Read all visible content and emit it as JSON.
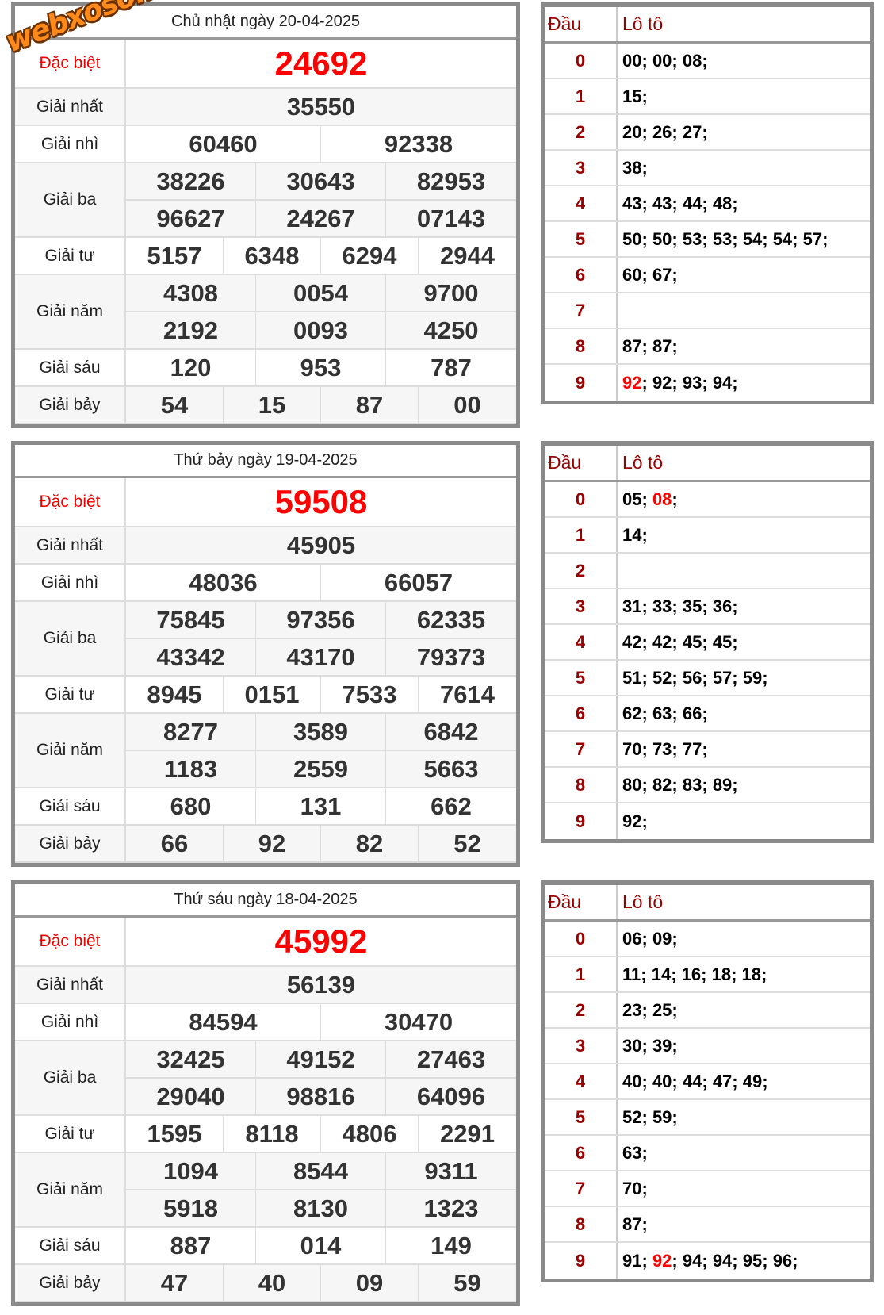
{
  "watermark": "webxoso.net",
  "labels": {
    "special": "Đặc biệt",
    "first": "Giải nhất",
    "second": "Giải nhì",
    "third": "Giải ba",
    "fourth": "Giải tư",
    "fifth": "Giải năm",
    "sixth": "Giải sáu",
    "seventh": "Giải bảy",
    "dau": "Đầu",
    "loto": "Lô tô"
  },
  "colors": {
    "special": "#ff0000",
    "head_digit": "#990000",
    "annotation": "#ff0000",
    "highlight": "#ff0000"
  },
  "draws": [
    {
      "title": "Chủ nhật ngày 20-04-2025",
      "special": "24692",
      "first": "35550",
      "second": [
        "60460",
        "92338"
      ],
      "third": [
        "38226",
        "30643",
        "82953",
        "96627",
        "24267",
        "07143"
      ],
      "fourth": [
        "5157",
        "6348",
        "6294",
        "2944"
      ],
      "fifth": [
        "4308",
        "0054",
        "9700",
        "2192",
        "0093",
        "4250"
      ],
      "sixth": [
        "120",
        "953",
        "787"
      ],
      "seventh": [
        "54",
        "15",
        "87",
        "00"
      ],
      "circled_fifth_index": 4,
      "loto": [
        {
          "head": "0",
          "nums": [
            {
              "n": "00"
            },
            {
              "n": "00"
            },
            {
              "n": "08"
            }
          ]
        },
        {
          "head": "1",
          "nums": [
            {
              "n": "15"
            }
          ]
        },
        {
          "head": "2",
          "nums": [
            {
              "n": "20"
            },
            {
              "n": "26"
            },
            {
              "n": "27"
            }
          ]
        },
        {
          "head": "3",
          "nums": [
            {
              "n": "38"
            }
          ]
        },
        {
          "head": "4",
          "nums": [
            {
              "n": "43"
            },
            {
              "n": "43"
            },
            {
              "n": "44"
            },
            {
              "n": "48"
            }
          ]
        },
        {
          "head": "5",
          "nums": [
            {
              "n": "50"
            },
            {
              "n": "50"
            },
            {
              "n": "53"
            },
            {
              "n": "53"
            },
            {
              "n": "54"
            },
            {
              "n": "54"
            },
            {
              "n": "57"
            }
          ]
        },
        {
          "head": "6",
          "nums": [
            {
              "n": "60"
            },
            {
              "n": "67"
            }
          ]
        },
        {
          "head": "7",
          "nums": []
        },
        {
          "head": "8",
          "nums": [
            {
              "n": "87"
            },
            {
              "n": "87"
            }
          ]
        },
        {
          "head": "9",
          "nums": [
            {
              "n": "92",
              "hl": true
            },
            {
              "n": "92"
            },
            {
              "n": "93"
            },
            {
              "n": "94"
            }
          ]
        }
      ]
    },
    {
      "title": "Thứ bảy ngày 19-04-2025",
      "special": "59508",
      "first": "45905",
      "second": [
        "48036",
        "66057"
      ],
      "third": [
        "75845",
        "97356",
        "62335",
        "43342",
        "43170",
        "79373"
      ],
      "fourth": [
        "8945",
        "0151",
        "7533",
        "7614"
      ],
      "fifth": [
        "8277",
        "3589",
        "6842",
        "1183",
        "2559",
        "5663"
      ],
      "sixth": [
        "680",
        "131",
        "662"
      ],
      "seventh": [
        "66",
        "92",
        "82",
        "52"
      ],
      "circled_fifth_index": 4,
      "loto": [
        {
          "head": "0",
          "nums": [
            {
              "n": "05"
            },
            {
              "n": "08",
              "hl": true
            }
          ]
        },
        {
          "head": "1",
          "nums": [
            {
              "n": "14"
            }
          ]
        },
        {
          "head": "2",
          "nums": []
        },
        {
          "head": "3",
          "nums": [
            {
              "n": "31"
            },
            {
              "n": "33"
            },
            {
              "n": "35"
            },
            {
              "n": "36"
            }
          ]
        },
        {
          "head": "4",
          "nums": [
            {
              "n": "42"
            },
            {
              "n": "42"
            },
            {
              "n": "45"
            },
            {
              "n": "45"
            }
          ]
        },
        {
          "head": "5",
          "nums": [
            {
              "n": "51"
            },
            {
              "n": "52"
            },
            {
              "n": "56"
            },
            {
              "n": "57"
            },
            {
              "n": "59"
            }
          ]
        },
        {
          "head": "6",
          "nums": [
            {
              "n": "62"
            },
            {
              "n": "63"
            },
            {
              "n": "66"
            }
          ]
        },
        {
          "head": "7",
          "nums": [
            {
              "n": "70"
            },
            {
              "n": "73"
            },
            {
              "n": "77"
            }
          ]
        },
        {
          "head": "8",
          "nums": [
            {
              "n": "80"
            },
            {
              "n": "82"
            },
            {
              "n": "83"
            },
            {
              "n": "89"
            }
          ]
        },
        {
          "head": "9",
          "nums": [
            {
              "n": "92"
            }
          ]
        }
      ]
    },
    {
      "title": "Thứ sáu ngày 18-04-2025",
      "special": "45992",
      "first": "56139",
      "second": [
        "84594",
        "30470"
      ],
      "third": [
        "32425",
        "49152",
        "27463",
        "29040",
        "98816",
        "64096"
      ],
      "fourth": [
        "1595",
        "8118",
        "4806",
        "2291"
      ],
      "fifth": [
        "1094",
        "8544",
        "9311",
        "5918",
        "8130",
        "1323"
      ],
      "sixth": [
        "887",
        "014",
        "149"
      ],
      "seventh": [
        "47",
        "40",
        "09",
        "59"
      ],
      "circled_fifth_index": 4,
      "loto": [
        {
          "head": "0",
          "nums": [
            {
              "n": "06"
            },
            {
              "n": "09"
            }
          ]
        },
        {
          "head": "1",
          "nums": [
            {
              "n": "11"
            },
            {
              "n": "14"
            },
            {
              "n": "16"
            },
            {
              "n": "18"
            },
            {
              "n": "18"
            }
          ]
        },
        {
          "head": "2",
          "nums": [
            {
              "n": "23"
            },
            {
              "n": "25"
            }
          ]
        },
        {
          "head": "3",
          "nums": [
            {
              "n": "30"
            },
            {
              "n": "39"
            }
          ]
        },
        {
          "head": "4",
          "nums": [
            {
              "n": "40"
            },
            {
              "n": "40"
            },
            {
              "n": "44"
            },
            {
              "n": "47"
            },
            {
              "n": "49"
            }
          ]
        },
        {
          "head": "5",
          "nums": [
            {
              "n": "52"
            },
            {
              "n": "59"
            }
          ]
        },
        {
          "head": "6",
          "nums": [
            {
              "n": "63"
            }
          ]
        },
        {
          "head": "7",
          "nums": [
            {
              "n": "70"
            }
          ]
        },
        {
          "head": "8",
          "nums": [
            {
              "n": "87"
            }
          ]
        },
        {
          "head": "9",
          "nums": [
            {
              "n": "91"
            },
            {
              "n": "92",
              "hl": true
            },
            {
              "n": "94"
            },
            {
              "n": "94"
            },
            {
              "n": "95"
            },
            {
              "n": "96"
            }
          ]
        }
      ]
    }
  ]
}
